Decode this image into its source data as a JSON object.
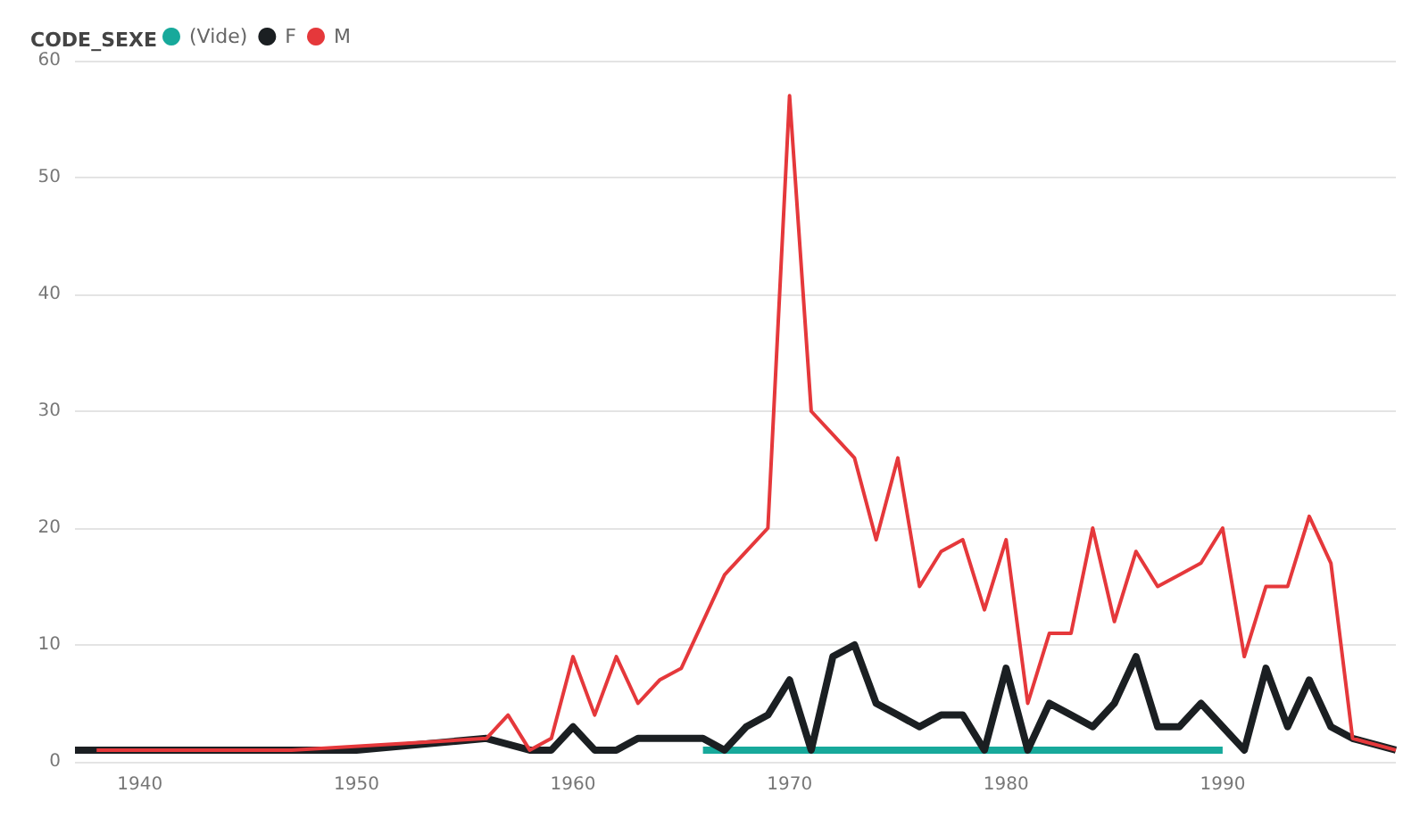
{
  "chart_data": {
    "type": "line",
    "legend_title": "CODE_SEXE",
    "legend": "top left",
    "grid": "y",
    "marker": "none",
    "line_style": "solid",
    "xlim": [
      1937,
      1998
    ],
    "xticks": [
      1940,
      1950,
      1960,
      1970,
      1980,
      1990
    ],
    "ylim": [
      0,
      60
    ],
    "yticks": [
      0,
      10,
      20,
      30,
      40,
      50,
      60
    ],
    "series": [
      {
        "name": "(Vide)",
        "color": "#17a99b",
        "x": [
          1966,
          1990
        ],
        "values": [
          1,
          1
        ]
      },
      {
        "name": "F",
        "color": "#1b1f22",
        "x": [
          1937,
          1950,
          1956,
          1958,
          1959,
          1960,
          1961,
          1962,
          1963,
          1964,
          1965,
          1966,
          1967,
          1968,
          1969,
          1970,
          1971,
          1972,
          1973,
          1974,
          1975,
          1976,
          1977,
          1978,
          1979,
          1980,
          1981,
          1982,
          1983,
          1984,
          1985,
          1986,
          1987,
          1988,
          1989,
          1990,
          1991,
          1992,
          1993,
          1994,
          1995,
          1996,
          1998
        ],
        "values": [
          1,
          1,
          2,
          1,
          1,
          3,
          1,
          1,
          2,
          2,
          2,
          2,
          1,
          3,
          4,
          7,
          1,
          9,
          10,
          5,
          4,
          3,
          4,
          4,
          1,
          8,
          1,
          5,
          4,
          3,
          5,
          9,
          3,
          3,
          5,
          3,
          1,
          8,
          3,
          7,
          3,
          2,
          1
        ]
      },
      {
        "name": "M",
        "color": "#e5383b",
        "x": [
          1938,
          1947,
          1956,
          1957,
          1958,
          1959,
          1960,
          1961,
          1962,
          1963,
          1964,
          1965,
          1966,
          1967,
          1968,
          1969,
          1970,
          1971,
          1972,
          1973,
          1974,
          1975,
          1976,
          1977,
          1978,
          1979,
          1980,
          1981,
          1982,
          1983,
          1984,
          1985,
          1986,
          1987,
          1988,
          1989,
          1990,
          1991,
          1992,
          1993,
          1994,
          1995,
          1996,
          1998
        ],
        "values": [
          1,
          1,
          2,
          4,
          1,
          2,
          9,
          4,
          9,
          5,
          7,
          8,
          12,
          16,
          18,
          20,
          57,
          30,
          28,
          26,
          19,
          26,
          15,
          18,
          19,
          13,
          19,
          5,
          11,
          11,
          20,
          12,
          18,
          15,
          16,
          17,
          20,
          9,
          15,
          15,
          21,
          17,
          2,
          1
        ]
      }
    ]
  }
}
